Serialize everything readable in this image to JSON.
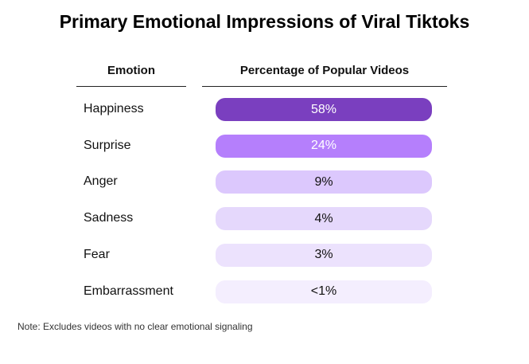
{
  "title": "Primary Emotional Impressions of Viral Tiktoks",
  "columns": {
    "emotion": "Emotion",
    "percentage": "Percentage of Popular Videos"
  },
  "note": "Note: Excludes videos with no clear emotional signaling",
  "chart_data": {
    "type": "table",
    "title": "Primary Emotional Impressions of Viral Tiktoks",
    "columns": [
      "Emotion",
      "Percentage of Popular Videos"
    ],
    "rows": [
      {
        "category": "Happiness",
        "label": "58%",
        "value": 58,
        "color": "#7a3fbf",
        "text_color": "#ffffff"
      },
      {
        "category": "Surprise",
        "label": "24%",
        "value": 24,
        "color": "#b57ffc",
        "text_color": "#ffffff"
      },
      {
        "category": "Anger",
        "label": "9%",
        "value": 9,
        "color": "#dcc8fd",
        "text_color": "#111111"
      },
      {
        "category": "Sadness",
        "label": "4%",
        "value": 4,
        "color": "#e5d8fc",
        "text_color": "#111111"
      },
      {
        "category": "Fear",
        "label": "3%",
        "value": 3,
        "color": "#ece2fd",
        "text_color": "#111111"
      },
      {
        "category": "Embarrassment",
        "label": "<1%",
        "value": 1,
        "color": "#f4eefe",
        "text_color": "#111111"
      }
    ],
    "note": "Note: Excludes videos with no clear emotional signaling"
  }
}
